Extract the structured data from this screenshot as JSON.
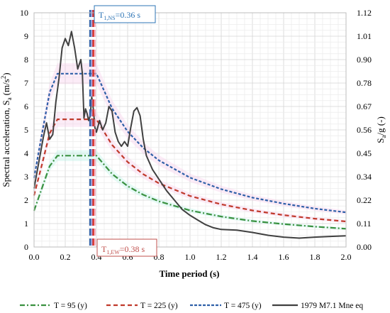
{
  "chart_data": {
    "type": "line",
    "xlabel": "Time period (s)",
    "ylabel_left": "Spectral acceleration, S",
    "ylabel_left_sub": "a",
    "ylabel_left_unit": "(m/s",
    "ylabel_left_unit_sup": "2",
    "ylabel_left_unit_close": ")",
    "ylabel_right": "S",
    "ylabel_right_sub": "a",
    "ylabel_right_tail": "/g (-)",
    "xlim": [
      0,
      2
    ],
    "ylim_left": [
      0,
      10
    ],
    "ylim_right": [
      0,
      1.12
    ],
    "grid": true,
    "legend_position": "bottom",
    "x_ticks": [
      "0.0",
      "0.2",
      "0.4",
      "0.6",
      "0.8",
      "1.0",
      "1.2",
      "1.4",
      "1.6",
      "1.8",
      "2.0"
    ],
    "y_left_ticks": [
      "0",
      "1",
      "2",
      "3",
      "4",
      "5",
      "6",
      "7",
      "8",
      "9",
      "10"
    ],
    "y_right_ticks": [
      "0.00",
      "0.11",
      "0.22",
      "0.34",
      "0.45",
      "0.56",
      "0.67",
      "0.78",
      "0.90",
      "1.01",
      "1.12"
    ],
    "annotations": {
      "ns": {
        "label_main": "T",
        "label_sub": "1,NS",
        "label_tail": "=0.36 s",
        "period": 0.36,
        "color": "#2e75b6"
      },
      "ew": {
        "label_main": "T",
        "label_sub": "1,EW",
        "label_tail": "=0.38 s",
        "period": 0.38,
        "color": "#c0504d"
      }
    },
    "series": [
      {
        "name": "T = 95 (y)",
        "color": "#3a9140",
        "dash": "dashdot",
        "x": [
          0.0,
          0.05,
          0.1,
          0.15,
          0.2,
          0.3,
          0.4,
          0.5,
          0.6,
          0.7,
          0.8,
          1.0,
          1.2,
          1.4,
          1.6,
          1.8,
          2.0
        ],
        "y": [
          1.55,
          2.5,
          3.45,
          3.9,
          3.9,
          3.9,
          3.9,
          3.12,
          2.6,
          2.23,
          1.95,
          1.56,
          1.3,
          1.11,
          0.98,
          0.87,
          0.78
        ]
      },
      {
        "name": "T = 225 (y)",
        "color": "#c0392b",
        "dash": "dashed",
        "x": [
          0.0,
          0.05,
          0.1,
          0.15,
          0.2,
          0.3,
          0.4,
          0.5,
          0.6,
          0.7,
          0.8,
          1.0,
          1.2,
          1.4,
          1.6,
          1.8,
          2.0
        ],
        "y": [
          2.2,
          3.5,
          4.85,
          5.45,
          5.45,
          5.45,
          5.45,
          4.36,
          3.63,
          3.11,
          2.72,
          2.18,
          1.82,
          1.56,
          1.36,
          1.21,
          1.09
        ]
      },
      {
        "name": "T = 475 (y)",
        "color": "#2e5fa8",
        "dash": "dashed",
        "x": [
          0.0,
          0.05,
          0.1,
          0.15,
          0.2,
          0.3,
          0.4,
          0.5,
          0.6,
          0.7,
          0.8,
          1.0,
          1.2,
          1.4,
          1.6,
          1.8,
          2.0
        ],
        "y": [
          2.95,
          4.8,
          6.6,
          7.4,
          7.4,
          7.4,
          7.4,
          5.92,
          4.93,
          4.23,
          3.7,
          2.96,
          2.47,
          2.11,
          1.85,
          1.64,
          1.48
        ]
      },
      {
        "name": "1979 M7.1 Mne eq",
        "color": "#404040",
        "dash": "solid",
        "x": [
          0.0,
          0.03,
          0.06,
          0.08,
          0.1,
          0.12,
          0.14,
          0.16,
          0.18,
          0.2,
          0.22,
          0.24,
          0.26,
          0.28,
          0.3,
          0.31,
          0.32,
          0.33,
          0.34,
          0.35,
          0.36,
          0.37,
          0.38,
          0.39,
          0.4,
          0.42,
          0.44,
          0.46,
          0.48,
          0.5,
          0.52,
          0.54,
          0.56,
          0.58,
          0.6,
          0.62,
          0.64,
          0.66,
          0.68,
          0.7,
          0.72,
          0.76,
          0.8,
          0.85,
          0.9,
          0.95,
          1.0,
          1.05,
          1.1,
          1.15,
          1.2,
          1.3,
          1.4,
          1.5,
          1.6,
          1.7,
          1.8,
          1.9,
          2.0
        ],
        "y": [
          2.5,
          3.6,
          4.7,
          5.3,
          4.6,
          4.8,
          6.2,
          7.2,
          8.5,
          8.9,
          8.6,
          9.2,
          8.5,
          7.6,
          8.0,
          7.4,
          5.5,
          5.9,
          5.7,
          5.4,
          5.6,
          6.4,
          5.9,
          5.1,
          4.9,
          5.4,
          5.0,
          5.3,
          6.0,
          5.8,
          4.9,
          4.5,
          4.3,
          4.5,
          4.3,
          5.1,
          5.8,
          5.95,
          5.6,
          4.6,
          3.9,
          3.3,
          2.9,
          2.4,
          2.0,
          1.6,
          1.35,
          1.15,
          0.95,
          0.82,
          0.75,
          0.72,
          0.62,
          0.5,
          0.42,
          0.38,
          0.42,
          0.45,
          0.48
        ]
      }
    ]
  }
}
